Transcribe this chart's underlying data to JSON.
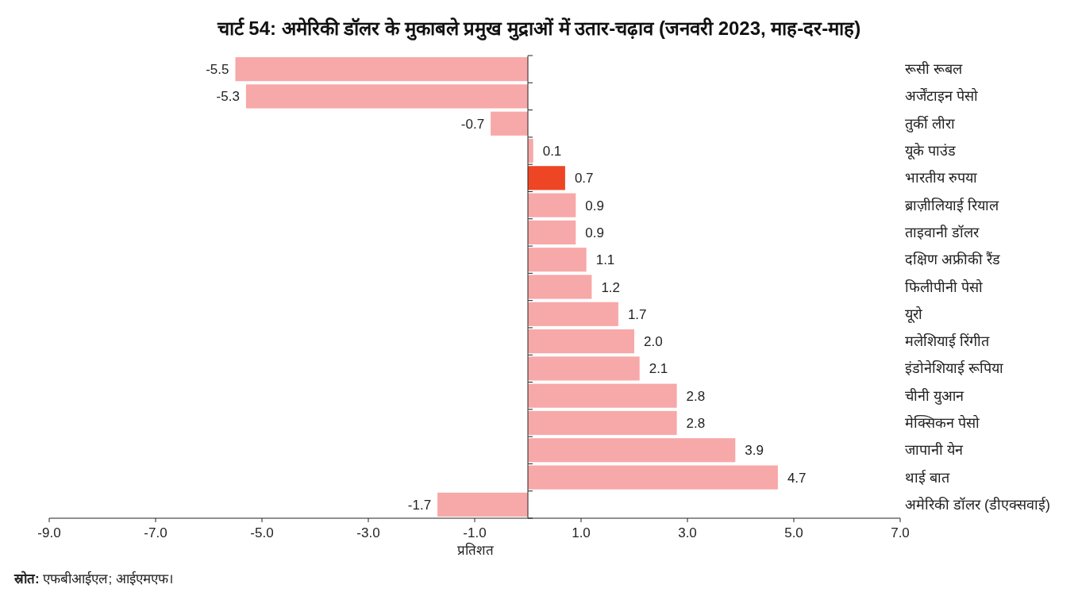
{
  "chart_data": {
    "type": "bar",
    "orientation": "horizontal",
    "title": "चार्ट 54: अमेरिकी डॉलर के मुकाबले प्रमुख मुद्राओं में उतार-चढ़ाव (जनवरी 2023, माह-दर-माह)",
    "xlabel": "प्रतिशत",
    "categories": [
      "रूसी रूबल",
      "अर्जेंटाइन पेसो",
      "तुर्की लीरा",
      "यूके पाउंड",
      "भारतीय रुपया",
      "ब्राज़ीलियाई रियाल",
      "ताइवानी डॉलर",
      "दक्षिण अफ्रीकी रैंड",
      "फिलीपीनी पेसो",
      "यूरो",
      "मलेशियाई रिंगीत",
      "इंडोनेशियाई रूपिया",
      "चीनी युआन",
      "मेक्सिकन पेसो",
      "जापानी येन",
      "थाई बात",
      "अमेरिकी डॉलर (डीएक्सवाई)"
    ],
    "values": [
      -5.5,
      -5.3,
      -0.7,
      0.1,
      0.7,
      0.9,
      0.9,
      1.1,
      1.2,
      1.7,
      2.0,
      2.1,
      2.8,
      2.8,
      3.9,
      4.7,
      -1.7
    ],
    "colors": [
      "#f7a8a8",
      "#f7a8a8",
      "#f7a8a8",
      "#f7a8a8",
      "#ee4524",
      "#f7a8a8",
      "#f7a8a8",
      "#f7a8a8",
      "#f7a8a8",
      "#f7a8a8",
      "#f7a8a8",
      "#f7a8a8",
      "#f7a8a8",
      "#f7a8a8",
      "#f7a8a8",
      "#f7a8a8",
      "#f7a8a8"
    ],
    "value_labels": [
      "-5.5",
      "-5.3",
      "-0.7",
      "0.1",
      "0.7",
      "0.9",
      "0.9",
      "1.1",
      "1.2",
      "1.7",
      "2.0",
      "2.1",
      "2.8",
      "2.8",
      "3.9",
      "4.7",
      "-1.7"
    ],
    "xlim": [
      -9,
      7
    ],
    "xticks": [
      {
        "value": -9,
        "label": "-9.0"
      },
      {
        "value": -7,
        "label": "-7.0"
      },
      {
        "value": -5,
        "label": "-5.0"
      },
      {
        "value": -3,
        "label": "-3.0"
      },
      {
        "value": -1,
        "label": "-1.0"
      },
      {
        "value": 1,
        "label": "1.0"
      },
      {
        "value": 3,
        "label": "3.0"
      },
      {
        "value": 5,
        "label": "5.0"
      },
      {
        "value": 7,
        "label": "7.0"
      }
    ],
    "annotations": [
      "**स्रोत:** एफबीआईएल; आईएमएफ।"
    ]
  }
}
